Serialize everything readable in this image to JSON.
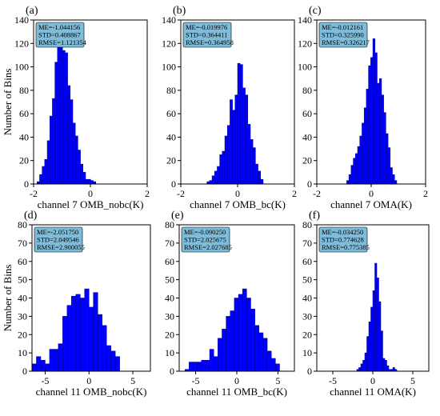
{
  "chart_data": [
    {
      "type": "bar",
      "panel": "(a)",
      "xlabel": "channel 7 OMB_nobc(K)",
      "ylabel": "Number of Bins",
      "xlim": [
        -2,
        2
      ],
      "ylim": [
        0,
        140
      ],
      "xticks": [
        -2,
        0,
        2
      ],
      "yticks": [
        0,
        20,
        40,
        60,
        80,
        100,
        120,
        140
      ],
      "bar_color": "#0000ff",
      "edge_color": "#00008b",
      "stats": [
        "ME=-1.044156",
        "STD=0.408867",
        "RMSE=1.121354"
      ],
      "bin_edges": [
        -1.88,
        -1.79,
        -1.7,
        -1.61,
        -1.52,
        -1.43,
        -1.34,
        -1.25,
        -1.16,
        -1.07,
        -0.98,
        -0.89,
        -0.8,
        -0.71,
        -0.62,
        -0.53,
        -0.44,
        -0.35,
        -0.26,
        -0.17,
        -0.08,
        0.01,
        0.1,
        0.19
      ],
      "counts": [
        2,
        8,
        15,
        21,
        37,
        58,
        73,
        104,
        125,
        120,
        114,
        112,
        84,
        72,
        52,
        41,
        29,
        17,
        10,
        4,
        4,
        3,
        2
      ]
    },
    {
      "type": "bar",
      "panel": "(b)",
      "xlabel": "channel 7 OMB_bc(K)",
      "ylabel": "",
      "xlim": [
        -2,
        2
      ],
      "ylim": [
        0,
        140
      ],
      "xticks": [
        -2,
        0,
        2
      ],
      "yticks": [
        0,
        20,
        40,
        60,
        80,
        100,
        120,
        140
      ],
      "bar_color": "#0000ff",
      "edge_color": "#00008b",
      "stats": [
        "ME=-0.019976",
        "STD=0.364411",
        "RMSE=0.364958"
      ],
      "bin_edges": [
        -1.08,
        -0.99,
        -0.9,
        -0.81,
        -0.72,
        -0.63,
        -0.54,
        -0.45,
        -0.36,
        -0.27,
        -0.18,
        -0.09,
        0.0,
        0.09,
        0.18,
        0.27,
        0.36,
        0.45,
        0.54,
        0.63,
        0.72,
        0.81,
        0.9
      ],
      "counts": [
        2,
        3,
        7,
        11,
        15,
        25,
        28,
        41,
        50,
        72,
        63,
        76,
        103,
        102,
        82,
        76,
        51,
        38,
        31,
        17,
        11,
        4
      ]
    },
    {
      "type": "bar",
      "panel": "(c)",
      "xlabel": "channel 7 OMA(K)",
      "ylabel": "",
      "xlim": [
        -2,
        2
      ],
      "ylim": [
        0,
        140
      ],
      "xticks": [
        -2,
        0,
        2
      ],
      "yticks": [
        0,
        20,
        40,
        60,
        80,
        100,
        120,
        140
      ],
      "bar_color": "#0000ff",
      "edge_color": "#00008b",
      "stats": [
        "ME=-0.012161",
        "STD=0.325990",
        "RMSE=0.326217"
      ],
      "bin_edges": [
        -0.9,
        -0.82,
        -0.74,
        -0.66,
        -0.58,
        -0.5,
        -0.42,
        -0.34,
        -0.26,
        -0.18,
        -0.1,
        -0.02,
        0.06,
        0.14,
        0.22,
        0.3,
        0.38,
        0.46,
        0.54,
        0.62,
        0.7,
        0.78,
        0.86,
        0.94
      ],
      "counts": [
        3,
        8,
        16,
        22,
        26,
        32,
        41,
        52,
        65,
        81,
        101,
        108,
        124,
        112,
        86,
        90,
        76,
        61,
        43,
        31,
        14,
        8,
        3
      ]
    },
    {
      "type": "bar",
      "panel": "(d)",
      "xlabel": "channel 11 OMB_nobc(K)",
      "ylabel": "Number of Bins",
      "xlim": [
        -6.5,
        7
      ],
      "ylim": [
        0,
        80
      ],
      "xticks": [
        -5,
        0,
        5
      ],
      "yticks": [
        0,
        10,
        20,
        30,
        40,
        50,
        60,
        70,
        80
      ],
      "bar_color": "#0000ff",
      "edge_color": "#00008b",
      "stats": [
        "ME=-2.051750",
        "STD=2.049546",
        "RMSE=2.900055"
      ],
      "bin_edges": [
        -6.5,
        -6.0,
        -5.5,
        -5.0,
        -4.5,
        -4.0,
        -3.5,
        -3.0,
        -2.5,
        -2.0,
        -1.5,
        -1.0,
        -0.5,
        0.0,
        0.5,
        1.0,
        1.5,
        2.0,
        2.5,
        3.0,
        3.5
      ],
      "counts": [
        4,
        8,
        6,
        4,
        12,
        12,
        15,
        30,
        36,
        41,
        42,
        40,
        45,
        35,
        43,
        31,
        25,
        14,
        11,
        8
      ]
    },
    {
      "type": "bar",
      "panel": "(e)",
      "xlabel": "channel 11 OMB_bc(K)",
      "ylabel": "",
      "xlim": [
        -7,
        7
      ],
      "ylim": [
        0,
        80
      ],
      "xticks": [
        -5,
        0,
        5
      ],
      "yticks": [
        0,
        10,
        20,
        30,
        40,
        50,
        60,
        70,
        80
      ],
      "bar_color": "#0000ff",
      "edge_color": "#00008b",
      "stats": [
        "ME=-0.090250",
        "STD=2.025675",
        "RMSE=2.027685"
      ],
      "bin_edges": [
        -6.3,
        -5.8,
        -5.3,
        -4.8,
        -4.3,
        -3.8,
        -3.3,
        -2.8,
        -2.3,
        -1.8,
        -1.3,
        -0.8,
        -0.3,
        0.2,
        0.7,
        1.2,
        1.7,
        2.2,
        2.7,
        3.2,
        3.7,
        4.2,
        4.7,
        5.2
      ],
      "counts": [
        1,
        5,
        5,
        5,
        6,
        6,
        12,
        8,
        18,
        23,
        30,
        33,
        40,
        42,
        45,
        40,
        34,
        25,
        21,
        18,
        11,
        7,
        4
      ]
    },
    {
      "type": "bar",
      "panel": "(f)",
      "xlabel": "channel 11 OMA(K)",
      "ylabel": "",
      "xlim": [
        -7,
        7
      ],
      "ylim": [
        0,
        80
      ],
      "xticks": [
        -5,
        0,
        5
      ],
      "yticks": [
        0,
        10,
        20,
        30,
        40,
        50,
        60,
        70,
        80
      ],
      "bar_color": "#0000ff",
      "edge_color": "#00008b",
      "stats": [
        "ME=-0.034250",
        "STD=0.774628",
        "RMSE=0.775385"
      ],
      "bin_edges": [
        -2.0,
        -1.75,
        -1.5,
        -1.25,
        -1.0,
        -0.75,
        -0.5,
        -0.25,
        0.0,
        0.25,
        0.5,
        0.75,
        1.0,
        1.25,
        1.5,
        1.75,
        2.0,
        2.25,
        2.5,
        2.75,
        3.0
      ],
      "counts": [
        1,
        2,
        4,
        6,
        10,
        19,
        27,
        35,
        44,
        59,
        51,
        38,
        22,
        7,
        6,
        3,
        1,
        1,
        2,
        1
      ]
    }
  ]
}
